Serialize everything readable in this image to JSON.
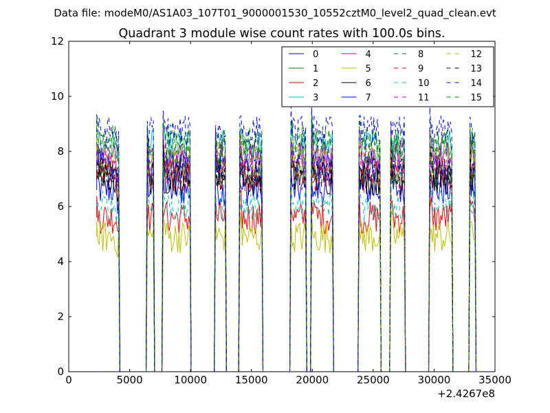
{
  "figure": {
    "suptitle": "Data file: modeM0/AS1A03_107T01_9000001530_10552cztM0_level2_quad_clean.evt"
  },
  "chart_data": {
    "type": "line",
    "title": "Quadrant 3 module wise count rates with 100.0s bins.",
    "xlabel": "",
    "ylabel": "",
    "x_offset_label": "+2.4267e8",
    "xlim": [
      0,
      35000
    ],
    "ylim": [
      0,
      12
    ],
    "xticks": [
      0,
      5000,
      10000,
      15000,
      20000,
      25000,
      30000,
      35000
    ],
    "yticks": [
      0,
      2,
      4,
      6,
      8,
      10,
      12
    ],
    "legend": {
      "location": "top-right",
      "columns": 4
    },
    "segments": [
      [
        2300,
        4100
      ],
      [
        6450,
        6950
      ],
      [
        7750,
        9950
      ],
      [
        12050,
        12850
      ],
      [
        14050,
        15850
      ],
      [
        18250,
        19450
      ],
      [
        19950,
        21650
      ],
      [
        23850,
        25550
      ],
      [
        26450,
        27550
      ],
      [
        29650,
        31450
      ],
      [
        32950,
        33350
      ]
    ],
    "series": [
      {
        "name": "0",
        "color": "#0000ff",
        "dash": "solid",
        "level": 6.6
      },
      {
        "name": "1",
        "color": "#008000",
        "dash": "solid",
        "level": 7.3
      },
      {
        "name": "2",
        "color": "#ff0000",
        "dash": "solid",
        "level": 5.6
      },
      {
        "name": "3",
        "color": "#00bfbf",
        "dash": "solid",
        "level": 8.2
      },
      {
        "name": "4",
        "color": "#bf00bf",
        "dash": "solid",
        "level": 7.8
      },
      {
        "name": "5",
        "color": "#bfbf00",
        "dash": "solid",
        "level": 4.9
      },
      {
        "name": "6",
        "color": "#000000",
        "dash": "solid",
        "level": 7.0
      },
      {
        "name": "7",
        "color": "#0000ff",
        "dash": "solid",
        "level": 7.4
      },
      {
        "name": "8",
        "color": "#008000",
        "dash": "dashed",
        "level": 8.4
      },
      {
        "name": "9",
        "color": "#ff0000",
        "dash": "dashed",
        "level": 7.1
      },
      {
        "name": "10",
        "color": "#00bfbf",
        "dash": "dashed",
        "level": 6.0
      },
      {
        "name": "11",
        "color": "#bf00bf",
        "dash": "dashed",
        "level": 7.6
      },
      {
        "name": "12",
        "color": "#bfbf00",
        "dash": "dashed",
        "level": 7.7
      },
      {
        "name": "13",
        "color": "#000000",
        "dash": "dashed",
        "level": 7.2
      },
      {
        "name": "14",
        "color": "#0000ff",
        "dash": "dashed",
        "level": 8.7
      },
      {
        "name": "15",
        "color": "#008000",
        "dash": "dashed",
        "level": 8.2
      }
    ]
  }
}
